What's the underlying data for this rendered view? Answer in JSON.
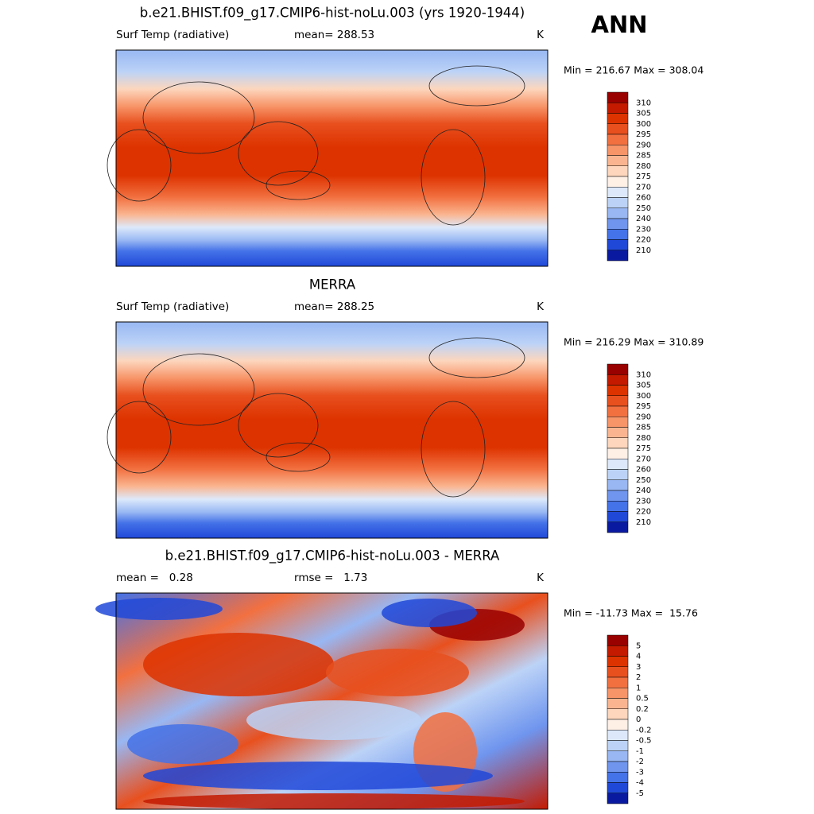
{
  "header": {
    "season": "ANN"
  },
  "panels": [
    {
      "title": "b.e21.BHIST.f09_g17.CMIP6-hist-noLu.003 (yrs 1920-1944)",
      "left_label": "Surf Temp (radiative)",
      "center_label": "mean= 288.53",
      "right_label": "K",
      "min_max": "Min = 216.67 Max = 308.04",
      "colorbar_labels": [
        "310",
        "305",
        "300",
        "295",
        "290",
        "285",
        "280",
        "275",
        "270",
        "260",
        "250",
        "240",
        "230",
        "220",
        "210"
      ]
    },
    {
      "title": "MERRA",
      "left_label": "Surf Temp (radiative)",
      "center_label": "mean= 288.25",
      "right_label": "K",
      "min_max": "Min = 216.29 Max = 310.89",
      "colorbar_labels": [
        "310",
        "305",
        "300",
        "295",
        "290",
        "285",
        "280",
        "275",
        "270",
        "260",
        "250",
        "240",
        "230",
        "220",
        "210"
      ]
    },
    {
      "title": "b.e21.BHIST.f09_g17.CMIP6-hist-noLu.003 - MERRA",
      "left_label": "mean =   0.28",
      "center_label": "rmse =   1.73",
      "right_label": "K",
      "min_max": "Min = -11.73 Max =  15.76",
      "colorbar_labels": [
        "5",
        "4",
        "3",
        "2",
        "1",
        "0.5",
        "0.2",
        "0",
        "-0.2",
        "-0.5",
        "-1",
        "-2",
        "-3",
        "-4",
        "-5"
      ]
    }
  ]
}
